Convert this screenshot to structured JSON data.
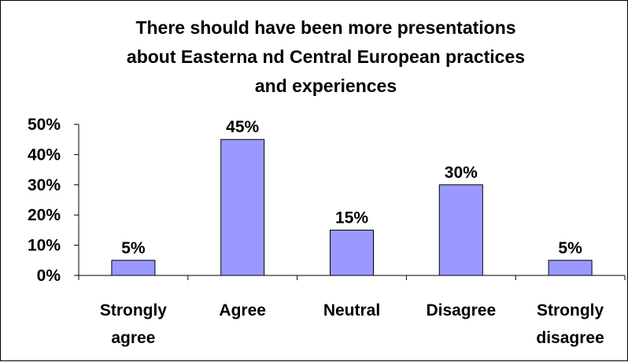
{
  "chart_data": {
    "type": "bar",
    "title": "There should have been more presentations about Easterna nd Central European practices and experiences",
    "title_lines": [
      "There should have been more presentations",
      "about Easterna nd Central European practices",
      "and experiences"
    ],
    "categories": [
      "Strongly agree",
      "Agree",
      "Neutral",
      "Disagree",
      "Strongly disagree"
    ],
    "category_lines": [
      [
        "Strongly",
        "agree"
      ],
      [
        "Agree"
      ],
      [
        "Neutral"
      ],
      [
        "Disagree"
      ],
      [
        "Strongly",
        "disagree"
      ]
    ],
    "values": [
      5,
      45,
      15,
      30,
      5
    ],
    "value_labels": [
      "5%",
      "45%",
      "15%",
      "30%",
      "5%"
    ],
    "ylim": [
      0,
      50
    ],
    "yticks": [
      0,
      10,
      20,
      30,
      40,
      50
    ],
    "ytick_labels": [
      "0%",
      "10%",
      "20%",
      "30%",
      "40%",
      "50%"
    ],
    "xlabel": "",
    "ylabel": "",
    "legend": "none",
    "grid": false,
    "bar_color": "#9999ff",
    "bar_edge_color": "#000000"
  }
}
